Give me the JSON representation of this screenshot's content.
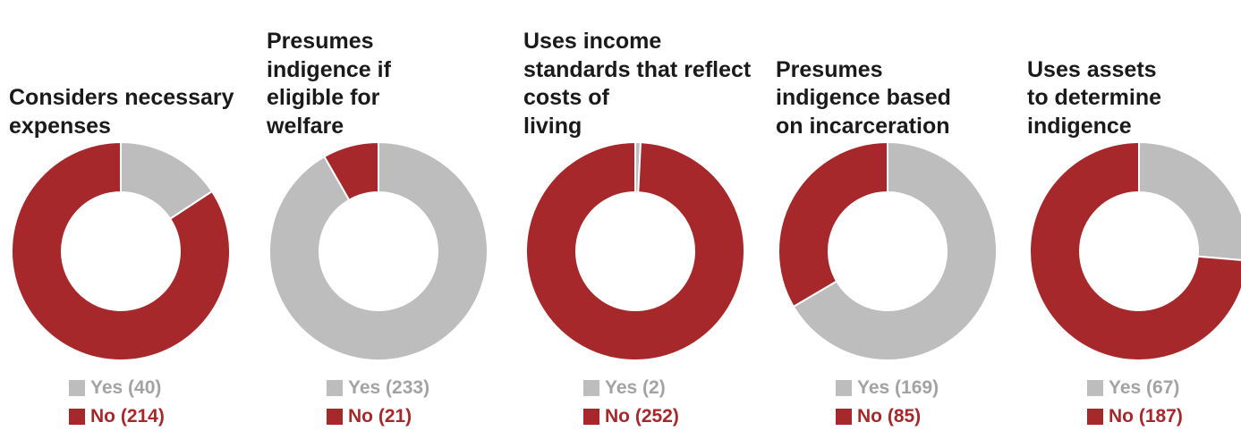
{
  "chart_data": [
    {
      "type": "pie",
      "title": "Considers necessary expenses",
      "categories": [
        "Yes",
        "No"
      ],
      "values": [
        40,
        214
      ],
      "legend": [
        "Yes (40)",
        "No (214)"
      ],
      "colors": [
        "#bdbdbd",
        "#a6282a"
      ]
    },
    {
      "type": "pie",
      "title": "Presumes indigence if eligible for welfare",
      "categories": [
        "Yes",
        "No"
      ],
      "values": [
        233,
        21
      ],
      "legend": [
        "Yes (233)",
        "No (21)"
      ],
      "colors": [
        "#bdbdbd",
        "#a6282a"
      ]
    },
    {
      "type": "pie",
      "title": "Uses income standards that reflect costs of living",
      "categories": [
        "Yes",
        "No"
      ],
      "values": [
        2,
        252
      ],
      "legend": [
        "Yes (2)",
        "No (252)"
      ],
      "colors": [
        "#bdbdbd",
        "#a6282a"
      ]
    },
    {
      "type": "pie",
      "title": "Presumes indigence based on incarceration",
      "categories": [
        "Yes",
        "No"
      ],
      "values": [
        169,
        85
      ],
      "legend": [
        "Yes (169)",
        "No (85)"
      ],
      "colors": [
        "#bdbdbd",
        "#a6282a"
      ]
    },
    {
      "type": "pie",
      "title": "Uses assets to determine indigence",
      "categories": [
        "Yes",
        "No"
      ],
      "values": [
        67,
        187
      ],
      "legend": [
        "Yes (67)",
        "No (187)"
      ],
      "colors": [
        "#bdbdbd",
        "#a6282a"
      ]
    }
  ]
}
